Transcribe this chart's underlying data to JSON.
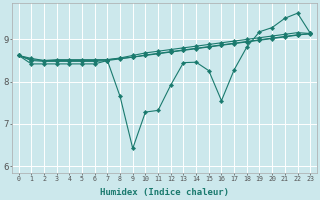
{
  "xlabel": "Humidex (Indice chaleur)",
  "bg_color": "#cce8ec",
  "line_color": "#1a7a6e",
  "grid_color": "#ffffff",
  "xlim": [
    -0.5,
    23.5
  ],
  "ylim": [
    5.85,
    9.85
  ],
  "yticks": [
    6,
    7,
    8,
    9
  ],
  "xticks": [
    0,
    1,
    2,
    3,
    4,
    5,
    6,
    7,
    8,
    9,
    10,
    11,
    12,
    13,
    14,
    15,
    16,
    17,
    18,
    19,
    20,
    21,
    22,
    23
  ],
  "series": [
    [
      8.62,
      8.55,
      8.5,
      8.52,
      8.52,
      8.52,
      8.52,
      8.52,
      8.55,
      8.58,
      8.62,
      8.66,
      8.7,
      8.74,
      8.78,
      8.82,
      8.86,
      8.9,
      8.94,
      8.98,
      9.02,
      9.06,
      9.1,
      9.14
    ],
    [
      8.62,
      8.52,
      8.5,
      8.5,
      8.5,
      8.5,
      8.5,
      8.52,
      8.56,
      8.62,
      8.68,
      8.72,
      8.76,
      8.8,
      8.84,
      8.88,
      8.92,
      8.96,
      9.0,
      9.04,
      9.08,
      9.12,
      9.16,
      9.14
    ],
    [
      8.62,
      8.5,
      8.48,
      8.48,
      8.48,
      8.48,
      8.48,
      8.5,
      8.54,
      8.58,
      8.63,
      8.67,
      8.71,
      8.75,
      8.79,
      8.83,
      8.87,
      8.91,
      8.95,
      8.99,
      9.03,
      9.07,
      9.11,
      9.13
    ],
    [
      8.62,
      8.42,
      8.42,
      8.42,
      8.42,
      8.42,
      8.42,
      8.5,
      7.65,
      6.42,
      7.28,
      7.32,
      7.92,
      8.45,
      8.46,
      8.26,
      7.55,
      8.28,
      8.82,
      9.18,
      9.28,
      9.5,
      9.62,
      9.15
    ]
  ]
}
